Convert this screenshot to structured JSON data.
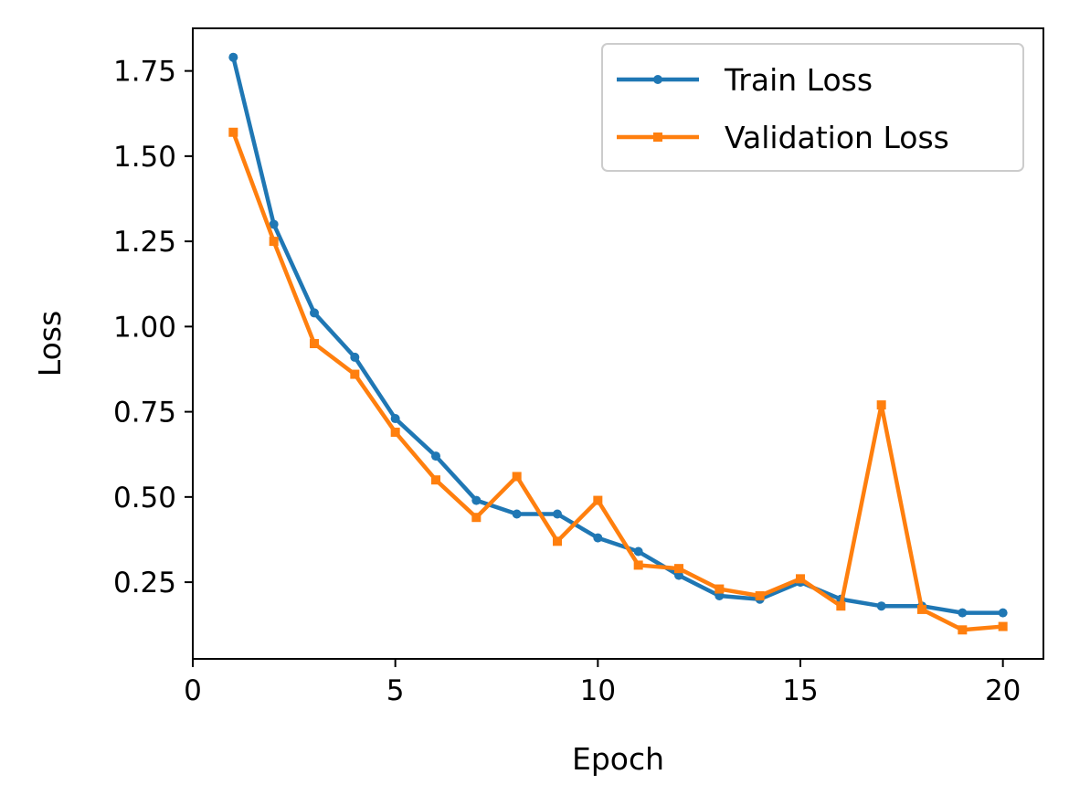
{
  "chart_data": {
    "type": "line",
    "title": "",
    "xlabel": "Epoch",
    "ylabel": "Loss",
    "xlim": [
      0,
      21
    ],
    "ylim": [
      0.025,
      1.875
    ],
    "xticks": [
      0,
      5,
      10,
      15,
      20
    ],
    "xtick_labels": [
      "0",
      "5",
      "10",
      "15",
      "20"
    ],
    "yticks": [
      0.25,
      0.5,
      0.75,
      1.0,
      1.25,
      1.5,
      1.75
    ],
    "ytick_labels": [
      "0.25",
      "0.50",
      "0.75",
      "1.00",
      "1.25",
      "1.50",
      "1.75"
    ],
    "grid": false,
    "legend_position": "top-right",
    "x": [
      1,
      2,
      3,
      4,
      5,
      6,
      7,
      8,
      9,
      10,
      11,
      12,
      13,
      14,
      15,
      16,
      17,
      18,
      19,
      20
    ],
    "series": [
      {
        "name": "Train Loss",
        "color": "#1f77b4",
        "marker": "circle",
        "values": [
          1.79,
          1.3,
          1.04,
          0.91,
          0.73,
          0.62,
          0.49,
          0.45,
          0.45,
          0.38,
          0.34,
          0.27,
          0.21,
          0.2,
          0.25,
          0.2,
          0.18,
          0.18,
          0.16,
          0.16
        ]
      },
      {
        "name": "Validation Loss",
        "color": "#ff7f0e",
        "marker": "square",
        "values": [
          1.57,
          1.25,
          0.95,
          0.86,
          0.69,
          0.55,
          0.44,
          0.56,
          0.37,
          0.49,
          0.3,
          0.29,
          0.23,
          0.21,
          0.26,
          0.18,
          0.77,
          0.17,
          0.11,
          0.12
        ]
      }
    ]
  }
}
